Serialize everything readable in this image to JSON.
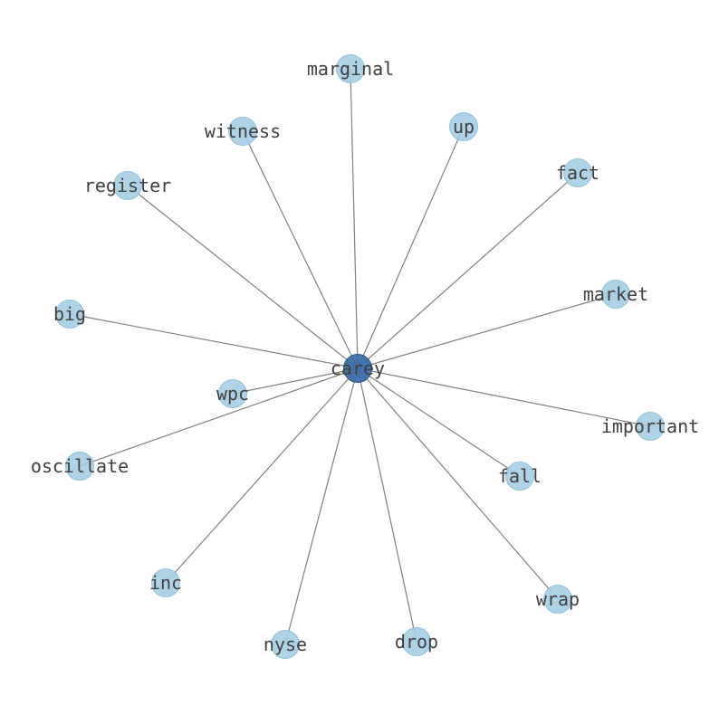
{
  "graph": {
    "center": "carey",
    "nodes": [
      "carey",
      "marginal",
      "witness",
      "up",
      "register",
      "fact",
      "market",
      "big",
      "wpc",
      "important",
      "oscillate",
      "fall",
      "inc",
      "wrap",
      "nyse",
      "drop"
    ],
    "edges": [
      [
        "carey",
        "marginal"
      ],
      [
        "carey",
        "witness"
      ],
      [
        "carey",
        "up"
      ],
      [
        "carey",
        "register"
      ],
      [
        "carey",
        "fact"
      ],
      [
        "carey",
        "market"
      ],
      [
        "carey",
        "big"
      ],
      [
        "carey",
        "wpc"
      ],
      [
        "carey",
        "important"
      ],
      [
        "carey",
        "oscillate"
      ],
      [
        "carey",
        "fall"
      ],
      [
        "carey",
        "inc"
      ],
      [
        "carey",
        "wrap"
      ],
      [
        "carey",
        "nyse"
      ],
      [
        "carey",
        "drop"
      ]
    ],
    "colors": {
      "center_node": "#3b6ea8",
      "leaf_node": "#a6cee3",
      "edge": "#808080",
      "label": "#404040"
    }
  }
}
